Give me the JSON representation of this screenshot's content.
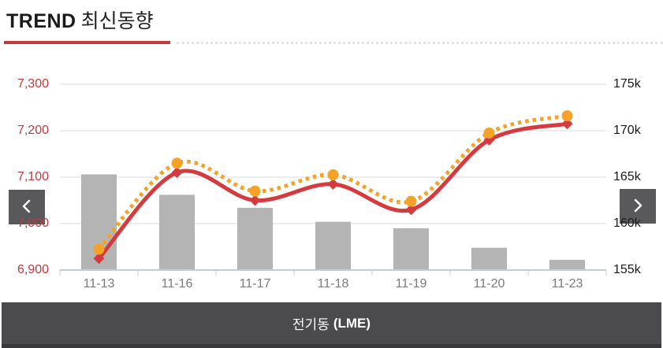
{
  "header": {
    "title_en": "TREND",
    "title_ko": "최신동향",
    "accent_color": "#c7383c"
  },
  "nav": {
    "prev_icon": "chevron-left",
    "next_icon": "chevron-right",
    "button_color": "#59595b"
  },
  "footer": {
    "label_ko": "전기동",
    "label_suffix": "(LME)"
  },
  "chart_data": {
    "type": "mixed-bar-line",
    "categories": [
      "11-13",
      "11-16",
      "11-17",
      "11-18",
      "11-19",
      "11-20",
      "11-23"
    ],
    "series": [
      {
        "name": "gray-bars",
        "type": "bar",
        "axis": "right",
        "color": "#b4b4b4",
        "values": [
          165.3,
          163.1,
          161.7,
          160.2,
          159.5,
          157.4,
          156.1
        ]
      },
      {
        "name": "orange-dotted-line",
        "type": "line",
        "style": "dotted",
        "axis": "left",
        "color": "#f5a228",
        "marker": "circle",
        "values": [
          6945,
          7130,
          7070,
          7105,
          7048,
          7195,
          7232
        ]
      },
      {
        "name": "red-line",
        "type": "line",
        "style": "solid",
        "axis": "left",
        "color": "#d53a3e",
        "marker": "diamond",
        "values": [
          6925,
          7110,
          7050,
          7085,
          7030,
          7180,
          7215
        ]
      }
    ],
    "left_axis": {
      "tick_labels": [
        "7,300",
        "7,200",
        "7,100",
        "7,000",
        "6,900"
      ],
      "min": 6900,
      "max": 7300,
      "label_color": "#bf3a3e"
    },
    "right_axis": {
      "tick_labels": [
        "175k",
        "170k",
        "165k",
        "160k",
        "155k"
      ],
      "min": 155,
      "max": 175,
      "unit": "k",
      "label_color": "#1a1a1a"
    },
    "x_axis": {
      "label_color": "#7a7a7a",
      "line_color": "#c3cdd6"
    },
    "grid_color": "#d9d9d9",
    "grid": "horizontal-only",
    "legend": "none",
    "title": "",
    "xlabel": "",
    "ylabel": ""
  }
}
